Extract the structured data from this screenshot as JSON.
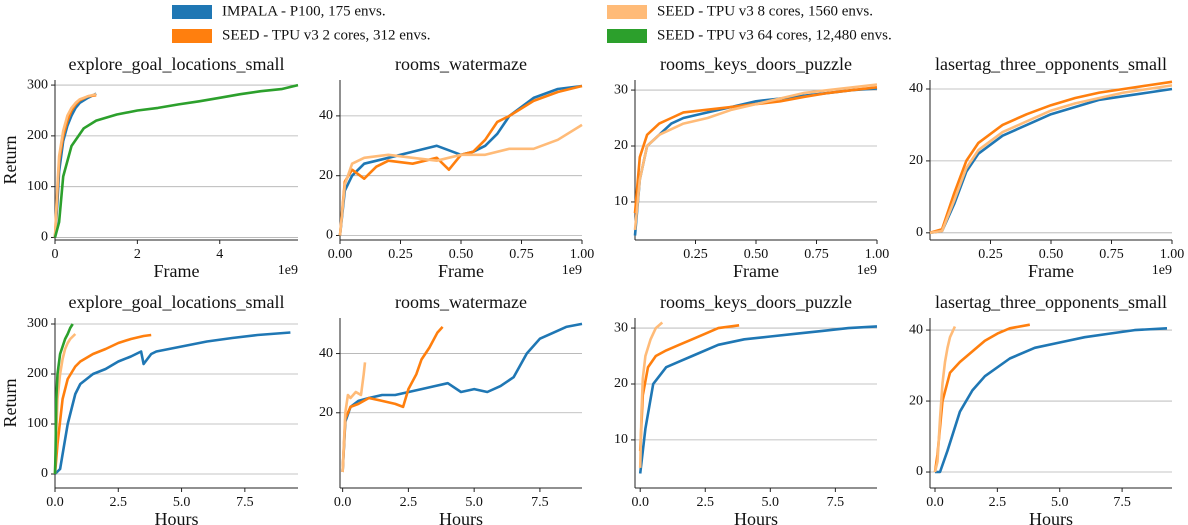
{
  "chart_data": [
    {
      "type": "line",
      "title": "explore_goal_locations_small",
      "xlabel": "Frame",
      "ylabel": "Return",
      "x_offset_label": "1e9",
      "xlim": [
        0,
        5.9
      ],
      "xticks": [
        0,
        2,
        4
      ],
      "ylim": [
        -5,
        310
      ],
      "yticks": [
        0,
        100,
        200,
        300
      ],
      "grid": true,
      "series": [
        {
          "name": "IMPALA - P100, 175 envs.",
          "color": "#1f77b4",
          "x": [
            0,
            0.05,
            0.1,
            0.2,
            0.3,
            0.4,
            0.5,
            0.6,
            0.8,
            1.0
          ],
          "values": [
            0,
            60,
            130,
            190,
            220,
            240,
            255,
            265,
            275,
            283
          ]
        },
        {
          "name": "SEED - TPU v3 2 cores, 312 envs.",
          "color": "#ff7f0e",
          "x": [
            0,
            0.05,
            0.1,
            0.2,
            0.3,
            0.4,
            0.5,
            0.6,
            0.8,
            1.0
          ],
          "values": [
            0,
            80,
            150,
            200,
            230,
            250,
            262,
            270,
            278,
            280
          ]
        },
        {
          "name": "SEED - TPU v3 8 cores, 1560 envs.",
          "color": "#ffbb78",
          "x": [
            0,
            0.05,
            0.1,
            0.2,
            0.3,
            0.4,
            0.5,
            0.6,
            0.8,
            1.0
          ],
          "values": [
            0,
            90,
            160,
            210,
            240,
            255,
            265,
            272,
            278,
            282
          ]
        },
        {
          "name": "SEED - TPU v3 64 cores, 12,480 envs.",
          "color": "#2ca02c",
          "x": [
            0,
            0.1,
            0.2,
            0.4,
            0.7,
            1,
            1.5,
            2,
            2.5,
            3,
            3.5,
            4,
            4.5,
            5,
            5.5,
            5.9
          ],
          "values": [
            0,
            30,
            120,
            180,
            215,
            230,
            242,
            250,
            255,
            262,
            268,
            275,
            282,
            288,
            292,
            300
          ]
        }
      ]
    },
    {
      "type": "line",
      "title": "rooms_watermaze",
      "xlabel": "Frame",
      "x_offset_label": "1e9",
      "xlim": [
        0,
        1
      ],
      "xticks": [
        {
          "value": 0,
          "label": "0.00"
        },
        0.25,
        {
          "value": 0.5,
          "label": "0.50"
        },
        0.75,
        {
          "value": 1,
          "label": "1.00"
        }
      ],
      "ylim": [
        -1.5,
        52
      ],
      "yticks": [
        0,
        20,
        40
      ],
      "grid": true,
      "series": [
        {
          "color": "#1f77b4",
          "x": [
            0,
            0.02,
            0.05,
            0.1,
            0.2,
            0.3,
            0.4,
            0.5,
            0.55,
            0.6,
            0.65,
            0.7,
            0.8,
            0.9,
            1.0
          ],
          "values": [
            0,
            15,
            20,
            24,
            26,
            28,
            30,
            27,
            28,
            30,
            34,
            40,
            46,
            49,
            50
          ]
        },
        {
          "color": "#ff7f0e",
          "x": [
            0,
            0.02,
            0.05,
            0.1,
            0.15,
            0.2,
            0.3,
            0.4,
            0.45,
            0.5,
            0.55,
            0.6,
            0.65,
            0.7,
            0.8,
            0.9,
            1.0
          ],
          "values": [
            0,
            18,
            22,
            19,
            23,
            25,
            24,
            26,
            22,
            27,
            28,
            32,
            38,
            40,
            45,
            48,
            50
          ]
        },
        {
          "color": "#ffbb78",
          "x": [
            0,
            0.02,
            0.05,
            0.1,
            0.2,
            0.3,
            0.4,
            0.5,
            0.6,
            0.7,
            0.8,
            0.9,
            1.0
          ],
          "values": [
            0,
            17,
            24,
            26,
            27,
            26,
            25,
            27,
            27,
            29,
            29,
            32,
            37
          ]
        }
      ]
    },
    {
      "type": "line",
      "title": "rooms_keys_doors_puzzle",
      "xlabel": "Frame",
      "x_offset_label": "1e9",
      "xlim": [
        0,
        1
      ],
      "xticks": [
        0.25,
        {
          "value": 0.5,
          "label": "0.50"
        },
        0.75,
        {
          "value": 1,
          "label": "1.00"
        }
      ],
      "ylim": [
        3.2,
        31.8
      ],
      "yticks": [
        10,
        20,
        30
      ],
      "grid": true,
      "series": [
        {
          "color": "#1f77b4",
          "x": [
            0,
            0.02,
            0.05,
            0.1,
            0.15,
            0.2,
            0.3,
            0.4,
            0.5,
            0.6,
            0.7,
            0.8,
            0.9,
            1.0
          ],
          "values": [
            4,
            14,
            20,
            22,
            24,
            25,
            26,
            27,
            28,
            28.5,
            29,
            29.5,
            30,
            30.3
          ]
        },
        {
          "color": "#ff7f0e",
          "x": [
            0,
            0.02,
            0.05,
            0.1,
            0.15,
            0.2,
            0.3,
            0.4,
            0.5,
            0.6,
            0.7,
            0.8,
            0.9,
            1.0
          ],
          "values": [
            8,
            18,
            22,
            24,
            25,
            26,
            26.5,
            27,
            27.5,
            28,
            28.8,
            29.5,
            30,
            30.5
          ]
        },
        {
          "color": "#ffbb78",
          "x": [
            0,
            0.02,
            0.05,
            0.1,
            0.15,
            0.2,
            0.3,
            0.4,
            0.5,
            0.6,
            0.7,
            0.8,
            0.9,
            1.0
          ],
          "values": [
            5,
            14,
            20,
            22,
            23,
            24,
            25,
            26.5,
            27.5,
            28.5,
            29.5,
            30,
            30.5,
            31
          ]
        }
      ]
    },
    {
      "type": "line",
      "title": "lasertag_three_opponents_small",
      "xlabel": "Frame",
      "x_offset_label": "1e9",
      "xlim": [
        0,
        1
      ],
      "xticks": [
        0.25,
        {
          "value": 0.5,
          "label": "0.50"
        },
        0.75,
        {
          "value": 1,
          "label": "1.00"
        }
      ],
      "ylim": [
        -2,
        42.5
      ],
      "yticks": [
        0,
        20,
        40
      ],
      "grid": true,
      "series": [
        {
          "color": "#1f77b4",
          "x": [
            0,
            0.05,
            0.1,
            0.15,
            0.2,
            0.3,
            0.4,
            0.5,
            0.6,
            0.7,
            0.8,
            0.9,
            1.0
          ],
          "values": [
            0,
            0.5,
            8,
            17,
            22,
            27,
            30,
            33,
            35,
            37,
            38,
            39,
            40
          ]
        },
        {
          "color": "#ff7f0e",
          "x": [
            0,
            0.05,
            0.1,
            0.15,
            0.2,
            0.3,
            0.4,
            0.5,
            0.6,
            0.7,
            0.8,
            0.9,
            1.0
          ],
          "values": [
            0,
            1,
            11,
            20,
            25,
            30,
            33,
            35.5,
            37.5,
            39,
            40,
            41,
            42
          ]
        },
        {
          "color": "#ffbb78",
          "x": [
            0,
            0.05,
            0.1,
            0.15,
            0.2,
            0.3,
            0.4,
            0.5,
            0.6,
            0.7,
            0.8,
            0.9,
            1.0
          ],
          "values": [
            0,
            0.5,
            9,
            18,
            23,
            28,
            31,
            34,
            36,
            37.5,
            39,
            40,
            41
          ]
        }
      ]
    },
    {
      "type": "line",
      "title": "explore_goal_locations_small",
      "xlabel": "Hours",
      "ylabel": "Return",
      "xlim": [
        0,
        9.6
      ],
      "xticks": [
        {
          "value": 0,
          "label": "0.0"
        },
        2.5,
        {
          "value": 5,
          "label": "5.0"
        },
        7.5
      ],
      "ylim": [
        -28,
        312
      ],
      "yticks": [
        0,
        100,
        200,
        300
      ],
      "grid": true,
      "series": [
        {
          "color": "#1f77b4",
          "x": [
            0,
            0.2,
            0.5,
            0.8,
            1,
            1.5,
            2,
            2.5,
            3,
            3.4,
            3.5,
            3.8,
            4,
            5,
            6,
            7,
            8,
            9.3
          ],
          "values": [
            0,
            10,
            100,
            160,
            180,
            200,
            210,
            225,
            235,
            245,
            220,
            240,
            245,
            255,
            265,
            272,
            278,
            283
          ]
        },
        {
          "color": "#ff7f0e",
          "x": [
            0,
            0.1,
            0.3,
            0.5,
            0.8,
            1,
            1.5,
            2,
            2.5,
            3,
            3.5,
            3.8
          ],
          "values": [
            0,
            60,
            150,
            190,
            215,
            225,
            240,
            250,
            262,
            270,
            276,
            278
          ]
        },
        {
          "color": "#ffbb78",
          "x": [
            0,
            0.05,
            0.1,
            0.2,
            0.3,
            0.4,
            0.5,
            0.6,
            0.8
          ],
          "values": [
            0,
            80,
            150,
            200,
            230,
            250,
            262,
            270,
            280
          ]
        },
        {
          "color": "#2ca02c",
          "x": [
            0,
            0.02,
            0.05,
            0.1,
            0.2,
            0.3,
            0.4,
            0.5,
            0.6,
            0.7
          ],
          "values": [
            0,
            40,
            150,
            200,
            240,
            255,
            270,
            280,
            292,
            300
          ]
        }
      ]
    },
    {
      "type": "line",
      "title": "rooms_watermaze",
      "xlabel": "Hours",
      "xlim": [
        -0.1,
        9.1
      ],
      "xticks": [
        {
          "value": 0,
          "label": "0.0"
        },
        2.5,
        {
          "value": 5,
          "label": "5.0"
        },
        7.5
      ],
      "ylim": [
        -5.4,
        52
      ],
      "yticks": [
        20,
        40
      ],
      "grid": true,
      "series": [
        {
          "color": "#1f77b4",
          "x": [
            0,
            0.1,
            0.3,
            0.6,
            1,
            1.5,
            2,
            3,
            3.5,
            4,
            4.5,
            5,
            5.5,
            6,
            6.5,
            7,
            7.5,
            8,
            8.5,
            9.1
          ],
          "values": [
            0,
            17,
            22,
            24,
            25,
            26,
            26,
            28,
            29,
            30,
            27,
            28,
            27,
            29,
            32,
            40,
            45,
            47,
            49,
            50
          ]
        },
        {
          "color": "#ff7f0e",
          "x": [
            0,
            0.1,
            0.3,
            0.6,
            1,
            1.5,
            2,
            2.3,
            2.5,
            2.8,
            3,
            3.3,
            3.6,
            3.8
          ],
          "values": [
            0,
            18,
            22,
            23,
            25,
            24,
            23,
            22,
            28,
            33,
            38,
            42,
            47,
            49
          ]
        },
        {
          "color": "#ffbb78",
          "x": [
            0,
            0.1,
            0.2,
            0.3,
            0.5,
            0.7,
            0.8,
            0.85
          ],
          "values": [
            0,
            20,
            26,
            25,
            27,
            26,
            33,
            37
          ]
        }
      ]
    },
    {
      "type": "line",
      "title": "rooms_keys_doors_puzzle",
      "xlabel": "Hours",
      "xlim": [
        -0.2,
        9.1
      ],
      "xticks": [
        {
          "value": 0,
          "label": "0.0"
        },
        2.5,
        {
          "value": 5,
          "label": "5.0"
        },
        7.5
      ],
      "ylim": [
        1.4,
        31.8
      ],
      "yticks": [
        10,
        20,
        30
      ],
      "grid": true,
      "series": [
        {
          "color": "#1f77b4",
          "x": [
            0,
            0.2,
            0.5,
            1,
            1.5,
            2,
            3,
            4,
            5,
            6,
            7,
            8,
            9.1
          ],
          "values": [
            4,
            12,
            20,
            23,
            24,
            25,
            27,
            28,
            28.5,
            29,
            29.5,
            30,
            30.3
          ]
        },
        {
          "color": "#ff7f0e",
          "x": [
            0,
            0.1,
            0.3,
            0.6,
            1,
            1.5,
            2,
            2.5,
            3,
            3.8
          ],
          "values": [
            8,
            18,
            23,
            25,
            26,
            27,
            28,
            29,
            30,
            30.5
          ]
        },
        {
          "color": "#ffbb78",
          "x": [
            0,
            0.05,
            0.1,
            0.2,
            0.4,
            0.6,
            0.85
          ],
          "values": [
            5,
            15,
            21,
            25,
            28,
            30,
            31
          ]
        }
      ]
    },
    {
      "type": "line",
      "title": "lasertag_three_opponents_small",
      "xlabel": "Hours",
      "xlim": [
        -0.2,
        9.5
      ],
      "xticks": [
        {
          "value": 0,
          "label": "0.0"
        },
        2.5,
        {
          "value": 5,
          "label": "5.0"
        },
        7.5
      ],
      "ylim": [
        -4.5,
        43.4
      ],
      "yticks": [
        0,
        20,
        40
      ],
      "grid": true,
      "series": [
        {
          "color": "#1f77b4",
          "x": [
            0,
            0.2,
            0.5,
            1,
            1.5,
            2,
            3,
            4,
            5,
            6,
            7,
            8,
            9.3
          ],
          "values": [
            0,
            0,
            6,
            17,
            23,
            27,
            32,
            35,
            36.5,
            38,
            39,
            40,
            40.5
          ]
        },
        {
          "color": "#ff7f0e",
          "x": [
            0,
            0.1,
            0.3,
            0.6,
            1,
            1.5,
            2,
            2.5,
            3,
            3.8
          ],
          "values": [
            0,
            5,
            20,
            28,
            31,
            34,
            37,
            39,
            40.5,
            41.5
          ]
        },
        {
          "color": "#ffbb78",
          "x": [
            0,
            0.1,
            0.2,
            0.3,
            0.4,
            0.5,
            0.6,
            0.8
          ],
          "values": [
            0,
            3,
            15,
            25,
            31,
            35,
            38,
            41
          ]
        }
      ]
    }
  ]
}
